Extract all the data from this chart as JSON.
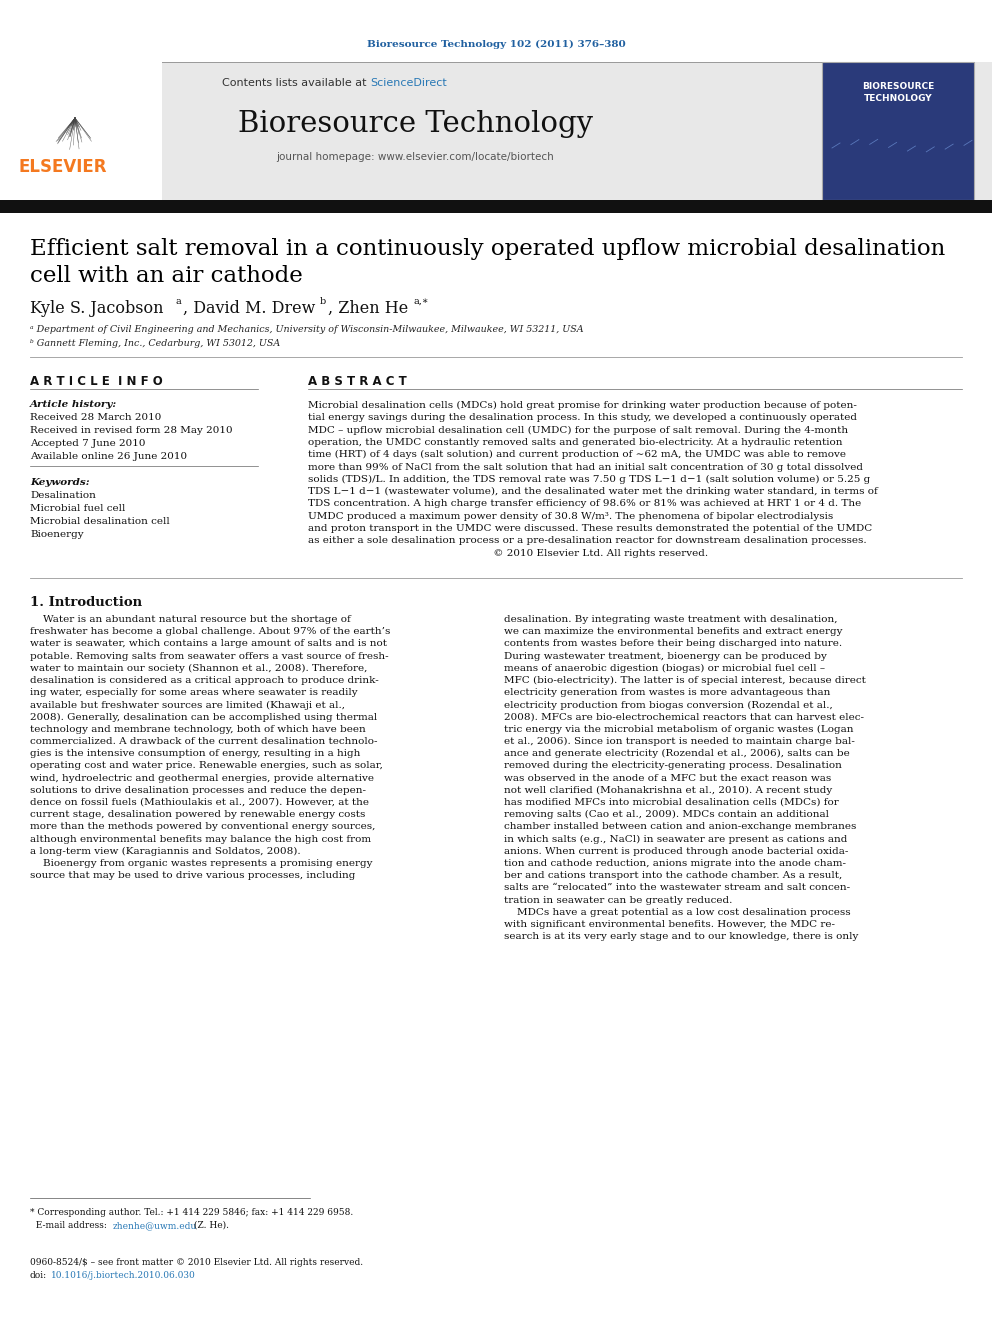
{
  "journal_ref": "Bioresource Technology 102 (2011) 376–380",
  "journal_name": "Bioresource Technology",
  "journal_homepage": "journal homepage: www.elsevier.com/locate/biortech",
  "contents_text": "Contents lists available at ScienceDirect",
  "sciencedirect_color": "#2878b5",
  "title_line1": "Efficient salt removal in a continuously operated upflow microbial desalination",
  "title_line2": "cell with an air cathode",
  "affil_a": "a Department of Civil Engineering and Mechanics, University of Wisconsin-Milwaukee, Milwaukee, WI 53211, USA",
  "affil_b": "b Gannett Fleming, Inc., Cedarburg, WI 53012, USA",
  "article_info_title": "A R T I C L E  I N F O",
  "abstract_title": "A B S T R A C T",
  "keywords": [
    "Desalination",
    "Microbial fuel cell",
    "Microbial desalination cell",
    "Bioenergy"
  ],
  "abstract_lines": [
    "Microbial desalination cells (MDCs) hold great promise for drinking water production because of poten-",
    "tial energy savings during the desalination process. In this study, we developed a continuously operated",
    "MDC – upflow microbial desalination cell (UMDC) for the purpose of salt removal. During the 4-month",
    "operation, the UMDC constantly removed salts and generated bio-electricity. At a hydraulic retention",
    "time (HRT) of 4 days (salt solution) and current production of ∼62 mA, the UMDC was able to remove",
    "more than 99% of NaCl from the salt solution that had an initial salt concentration of 30 g total dissolved",
    "solids (TDS)/L. In addition, the TDS removal rate was 7.50 g TDS L−1 d−1 (salt solution volume) or 5.25 g",
    "TDS L−1 d−1 (wastewater volume), and the desalinated water met the drinking water standard, in terms of",
    "TDS concentration. A high charge transfer efficiency of 98.6% or 81% was achieved at HRT 1 or 4 d. The",
    "UMDC produced a maximum power density of 30.8 W/m³. The phenomena of bipolar electrodialysis",
    "and proton transport in the UMDC were discussed. These results demonstrated the potential of the UMDC",
    "as either a sole desalination process or a pre-desalination reactor for downstream desalination processes.",
    "                                                         © 2010 Elsevier Ltd. All rights reserved."
  ],
  "col1_lines": [
    "    Water is an abundant natural resource but the shortage of",
    "freshwater has become a global challenge. About 97% of the earth’s",
    "water is seawater, which contains a large amount of salts and is not",
    "potable. Removing salts from seawater offers a vast source of fresh-",
    "water to maintain our society (Shannon et al., 2008). Therefore,",
    "desalination is considered as a critical approach to produce drink-",
    "ing water, especially for some areas where seawater is readily",
    "available but freshwater sources are limited (Khawaji et al.,",
    "2008). Generally, desalination can be accomplished using thermal",
    "technology and membrane technology, both of which have been",
    "commercialized. A drawback of the current desalination technolo-",
    "gies is the intensive consumption of energy, resulting in a high",
    "operating cost and water price. Renewable energies, such as solar,",
    "wind, hydroelectric and geothermal energies, provide alternative",
    "solutions to drive desalination processes and reduce the depen-",
    "dence on fossil fuels (Mathioulakis et al., 2007). However, at the",
    "current stage, desalination powered by renewable energy costs",
    "more than the methods powered by conventional energy sources,",
    "although environmental benefits may balance the high cost from",
    "a long-term view (Karagiannis and Soldatos, 2008).",
    "    Bioenergy from organic wastes represents a promising energy",
    "source that may be used to drive various processes, including"
  ],
  "col2_lines": [
    "desalination. By integrating waste treatment with desalination,",
    "we can maximize the environmental benefits and extract energy",
    "contents from wastes before their being discharged into nature.",
    "During wastewater treatment, bioenergy can be produced by",
    "means of anaerobic digestion (biogas) or microbial fuel cell –",
    "MFC (bio-electricity). The latter is of special interest, because direct",
    "electricity generation from wastes is more advantageous than",
    "electricity production from biogas conversion (Rozendal et al.,",
    "2008). MFCs are bio-electrochemical reactors that can harvest elec-",
    "tric energy via the microbial metabolism of organic wastes (Logan",
    "et al., 2006). Since ion transport is needed to maintain charge bal-",
    "ance and generate electricity (Rozendal et al., 2006), salts can be",
    "removed during the electricity-generating process. Desalination",
    "was observed in the anode of a MFC but the exact reason was",
    "not well clarified (Mohanakrishna et al., 2010). A recent study",
    "has modified MFCs into microbial desalination cells (MDCs) for",
    "removing salts (Cao et al., 2009). MDCs contain an additional",
    "chamber installed between cation and anion-exchange membranes",
    "in which salts (e.g., NaCl) in seawater are present as cations and",
    "anions. When current is produced through anode bacterial oxida-",
    "tion and cathode reduction, anions migrate into the anode cham-",
    "ber and cations transport into the cathode chamber. As a result,",
    "salts are “relocated” into the wastewater stream and salt concen-",
    "tration in seawater can be greatly reduced.",
    "    MDCs have a great potential as a low cost desalination process",
    "with significant environmental benefits. However, the MDC re-",
    "search is at its very early stage and to our knowledge, there is only"
  ],
  "background_color": "#ffffff",
  "header_bg": "#e8e8e8",
  "journal_ref_color": "#2060a0",
  "title_color": "#000000",
  "text_color": "#000000",
  "link_color": "#2878b5"
}
